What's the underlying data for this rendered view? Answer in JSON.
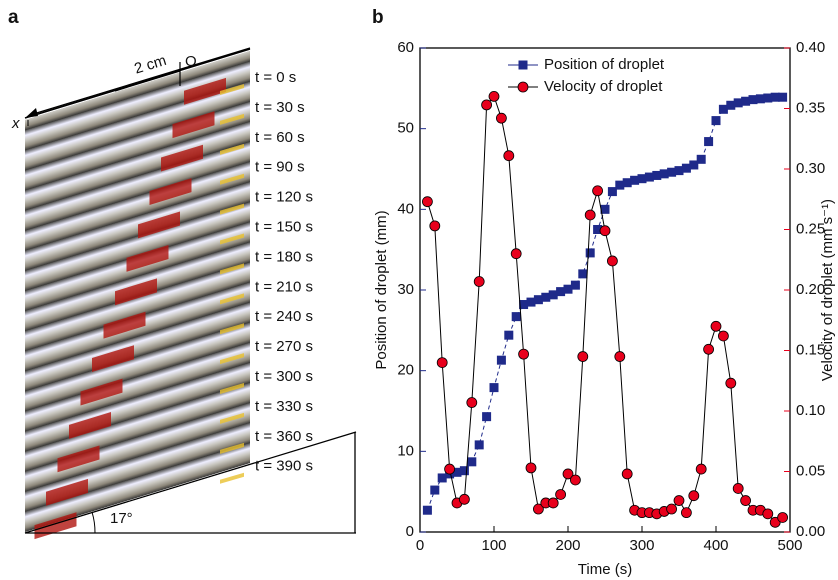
{
  "photo_panel": {
    "label": "a",
    "scale_label": "2 cm",
    "origin_label": "O",
    "axis_label": "x",
    "angle_label": "17°",
    "time_labels": [
      "t = 0 s",
      "t = 30 s",
      "t = 60 s",
      "t = 90 s",
      "t = 120 s",
      "t = 150 s",
      "t = 180 s",
      "t = 210 s",
      "t = 240 s",
      "t = 270 s",
      "t = 300 s",
      "t = 330 s",
      "t = 360 s",
      "t = 390 s"
    ]
  },
  "chart_data": {
    "type": "line",
    "panel_label": "b",
    "x": [
      10,
      20,
      30,
      40,
      50,
      60,
      70,
      80,
      90,
      100,
      110,
      120,
      130,
      140,
      150,
      160,
      170,
      180,
      190,
      200,
      210,
      220,
      230,
      240,
      250,
      260,
      270,
      280,
      290,
      300,
      310,
      320,
      330,
      340,
      350,
      360,
      370,
      380,
      390,
      400,
      410,
      420,
      430,
      440,
      450,
      460,
      470,
      480,
      490
    ],
    "xlabel": "Time (s)",
    "ylabel": "Position of droplet (mm)",
    "y2label": "Velocity of droplet (mm s⁻¹)",
    "xlim": [
      0,
      500
    ],
    "xticks": [
      0,
      100,
      200,
      300,
      400,
      500
    ],
    "ylim": [
      0,
      60
    ],
    "yticks": [
      0,
      10,
      20,
      30,
      40,
      50,
      60
    ],
    "y2lim": [
      0,
      0.4
    ],
    "y2ticks": [
      {
        "value": 0,
        "label": "0.00"
      },
      {
        "value": 0.05,
        "label": "0.05"
      },
      {
        "value": 0.1,
        "label": "0.10"
      },
      {
        "value": 0.15,
        "label": "0.15"
      },
      {
        "value": 0.2,
        "label": "0.20"
      },
      {
        "value": 0.25,
        "label": "0.25"
      },
      {
        "value": 0.3,
        "label": "0.30"
      },
      {
        "value": 0.35,
        "label": "0.35"
      },
      {
        "value": 0.4,
        "label": "0.40"
      }
    ],
    "legend": "top",
    "series": [
      {
        "name": "Position of droplet",
        "color": "#1f2a8a",
        "marker": "square",
        "values": [
          2.7,
          5.2,
          6.7,
          7.2,
          7.4,
          7.6,
          8.7,
          10.8,
          14.3,
          17.9,
          21.3,
          24.4,
          26.7,
          28.2,
          28.5,
          28.8,
          29.1,
          29.4,
          29.8,
          30.1,
          30.6,
          32.0,
          34.6,
          37.5,
          40.0,
          42.2,
          43.0,
          43.3,
          43.6,
          43.8,
          44.0,
          44.2,
          44.4,
          44.6,
          44.8,
          45.1,
          45.5,
          46.2,
          48.4,
          51.0,
          52.4,
          52.9,
          53.2,
          53.4,
          53.6,
          53.7,
          53.8,
          53.9,
          53.9
        ]
      },
      {
        "name": "Velocity of droplet",
        "color": "#e8001c",
        "marker": "circle",
        "axis": "y2",
        "values": [
          0.273,
          0.253,
          0.14,
          0.052,
          0.024,
          0.027,
          0.107,
          0.207,
          0.353,
          0.36,
          0.342,
          0.311,
          0.23,
          0.147,
          0.053,
          0.019,
          0.024,
          0.024,
          0.031,
          0.048,
          0.043,
          0.145,
          0.262,
          0.282,
          0.249,
          0.224,
          0.145,
          0.048,
          0.018,
          0.016,
          0.016,
          0.015,
          0.017,
          0.019,
          0.026,
          0.016,
          0.03,
          0.052,
          0.151,
          0.17,
          0.162,
          0.123,
          0.036,
          0.026,
          0.018,
          0.018,
          0.015,
          0.008,
          0.012
        ]
      }
    ]
  }
}
